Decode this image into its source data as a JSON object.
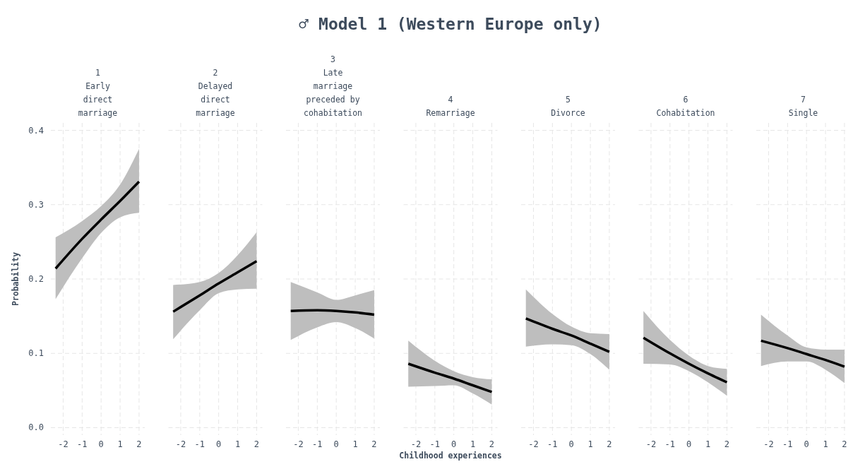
{
  "chart_data": [
    {
      "type": "line",
      "subtitle": "1\nEarly\ndirect\nmarriage",
      "ylabel": "Probability",
      "x": [
        -2.4,
        -1,
        0,
        1,
        2
      ],
      "xlim": [
        -2.65,
        2.3
      ],
      "xticks": [
        -2,
        -1,
        0,
        1,
        2
      ],
      "ylim": [
        -0.01,
        0.41
      ],
      "yticks": [
        {
          "value": 0,
          "label": "0.0"
        },
        0.1,
        0.2,
        0.3,
        0.4
      ],
      "grid": true,
      "series": [
        {
          "color": "#000000",
          "values": [
            0.214,
            0.254,
            0.28,
            0.305,
            0.331
          ],
          "lower": [
            0.173,
            0.228,
            0.262,
            0.283,
            0.289
          ],
          "upper": [
            0.256,
            0.278,
            0.298,
            0.327,
            0.375
          ]
        }
      ]
    },
    {
      "type": "line",
      "subtitle": "2\nDelayed\ndirect\nmarriage",
      "x": [
        -2.4,
        -1,
        0,
        1,
        2
      ],
      "xlim": [
        -2.65,
        2.3
      ],
      "xticks": [
        -2,
        -1,
        0,
        1,
        2
      ],
      "ylim": [
        -0.01,
        0.41
      ],
      "yticks": [
        0,
        0.1,
        0.2,
        0.3,
        0.4
      ],
      "grid": true,
      "tick_labels": "x",
      "series": [
        {
          "color": "#000000",
          "values": [
            0.156,
            0.178,
            0.194,
            0.209,
            0.224
          ],
          "lower": [
            0.119,
            0.158,
            0.181,
            0.186,
            0.187
          ],
          "upper": [
            0.192,
            0.196,
            0.208,
            0.232,
            0.263
          ]
        }
      ]
    },
    {
      "type": "line",
      "subtitle": "3\nLate\nmarriage\npreceded by\ncohabitation",
      "x": [
        -2.4,
        -1,
        0,
        1,
        2
      ],
      "xlim": [
        -2.65,
        2.3
      ],
      "xticks": [
        -2,
        -1,
        0,
        1,
        2
      ],
      "ylim": [
        -0.01,
        0.41
      ],
      "yticks": [
        0,
        0.1,
        0.2,
        0.3,
        0.4
      ],
      "grid": true,
      "tick_labels": "x",
      "series": [
        {
          "color": "#000000",
          "values": [
            0.157,
            0.158,
            0.157,
            0.155,
            0.152
          ],
          "lower": [
            0.118,
            0.135,
            0.142,
            0.134,
            0.12
          ],
          "upper": [
            0.196,
            0.182,
            0.172,
            0.178,
            0.185
          ]
        }
      ]
    },
    {
      "type": "line",
      "title": "♂ Model 1 (Western Europe only)",
      "subtitle": "4\nRemarriage",
      "xlabel": "Childhood experiences",
      "x": [
        -2.4,
        -1,
        0,
        1,
        2
      ],
      "xlim": [
        -2.65,
        2.3
      ],
      "xticks": [
        -2,
        -1,
        0,
        1,
        2
      ],
      "ylim": [
        -0.01,
        0.41
      ],
      "yticks": [
        0,
        0.1,
        0.2,
        0.3,
        0.4
      ],
      "grid": true,
      "tick_labels": "x",
      "series": [
        {
          "color": "#000000",
          "values": [
            0.086,
            0.074,
            0.066,
            0.057,
            0.048
          ],
          "lower": [
            0.055,
            0.056,
            0.057,
            0.046,
            0.031
          ],
          "upper": [
            0.117,
            0.09,
            0.076,
            0.068,
            0.065
          ]
        }
      ]
    },
    {
      "type": "line",
      "subtitle": "5\nDivorce",
      "x": [
        -2.4,
        -1,
        0,
        1,
        2
      ],
      "xlim": [
        -2.65,
        2.3
      ],
      "xticks": [
        -2,
        -1,
        0,
        1,
        2
      ],
      "ylim": [
        -0.01,
        0.41
      ],
      "yticks": [
        0,
        0.1,
        0.2,
        0.3,
        0.4
      ],
      "grid": true,
      "tick_labels": "x",
      "series": [
        {
          "color": "#000000",
          "values": [
            0.147,
            0.133,
            0.124,
            0.113,
            0.102
          ],
          "lower": [
            0.109,
            0.112,
            0.111,
            0.099,
            0.078
          ],
          "upper": [
            0.186,
            0.153,
            0.136,
            0.127,
            0.126
          ]
        }
      ]
    },
    {
      "type": "line",
      "subtitle": "6\nCohabitation",
      "x": [
        -2.4,
        -1,
        0,
        1,
        2
      ],
      "xlim": [
        -2.65,
        2.3
      ],
      "xticks": [
        -2,
        -1,
        0,
        1,
        2
      ],
      "ylim": [
        -0.01,
        0.41
      ],
      "yticks": [
        0,
        0.1,
        0.2,
        0.3,
        0.4
      ],
      "grid": true,
      "tick_labels": "x",
      "series": [
        {
          "color": "#000000",
          "values": [
            0.121,
            0.1,
            0.086,
            0.073,
            0.061
          ],
          "lower": [
            0.086,
            0.085,
            0.076,
            0.061,
            0.043
          ],
          "upper": [
            0.157,
            0.118,
            0.097,
            0.083,
            0.079
          ]
        }
      ]
    },
    {
      "type": "line",
      "subtitle": "7\nSingle",
      "x": [
        -2.4,
        -1,
        0,
        1,
        2
      ],
      "xlim": [
        -2.65,
        2.3
      ],
      "xticks": [
        -2,
        -1,
        0,
        1,
        2
      ],
      "ylim": [
        -0.01,
        0.41
      ],
      "yticks": [
        0,
        0.1,
        0.2,
        0.3,
        0.4
      ],
      "grid": true,
      "tick_labels": "x",
      "series": [
        {
          "color": "#000000",
          "values": [
            0.117,
            0.107,
            0.099,
            0.091,
            0.082
          ],
          "lower": [
            0.083,
            0.089,
            0.089,
            0.078,
            0.06
          ],
          "upper": [
            0.152,
            0.124,
            0.108,
            0.105,
            0.105
          ]
        }
      ]
    }
  ]
}
